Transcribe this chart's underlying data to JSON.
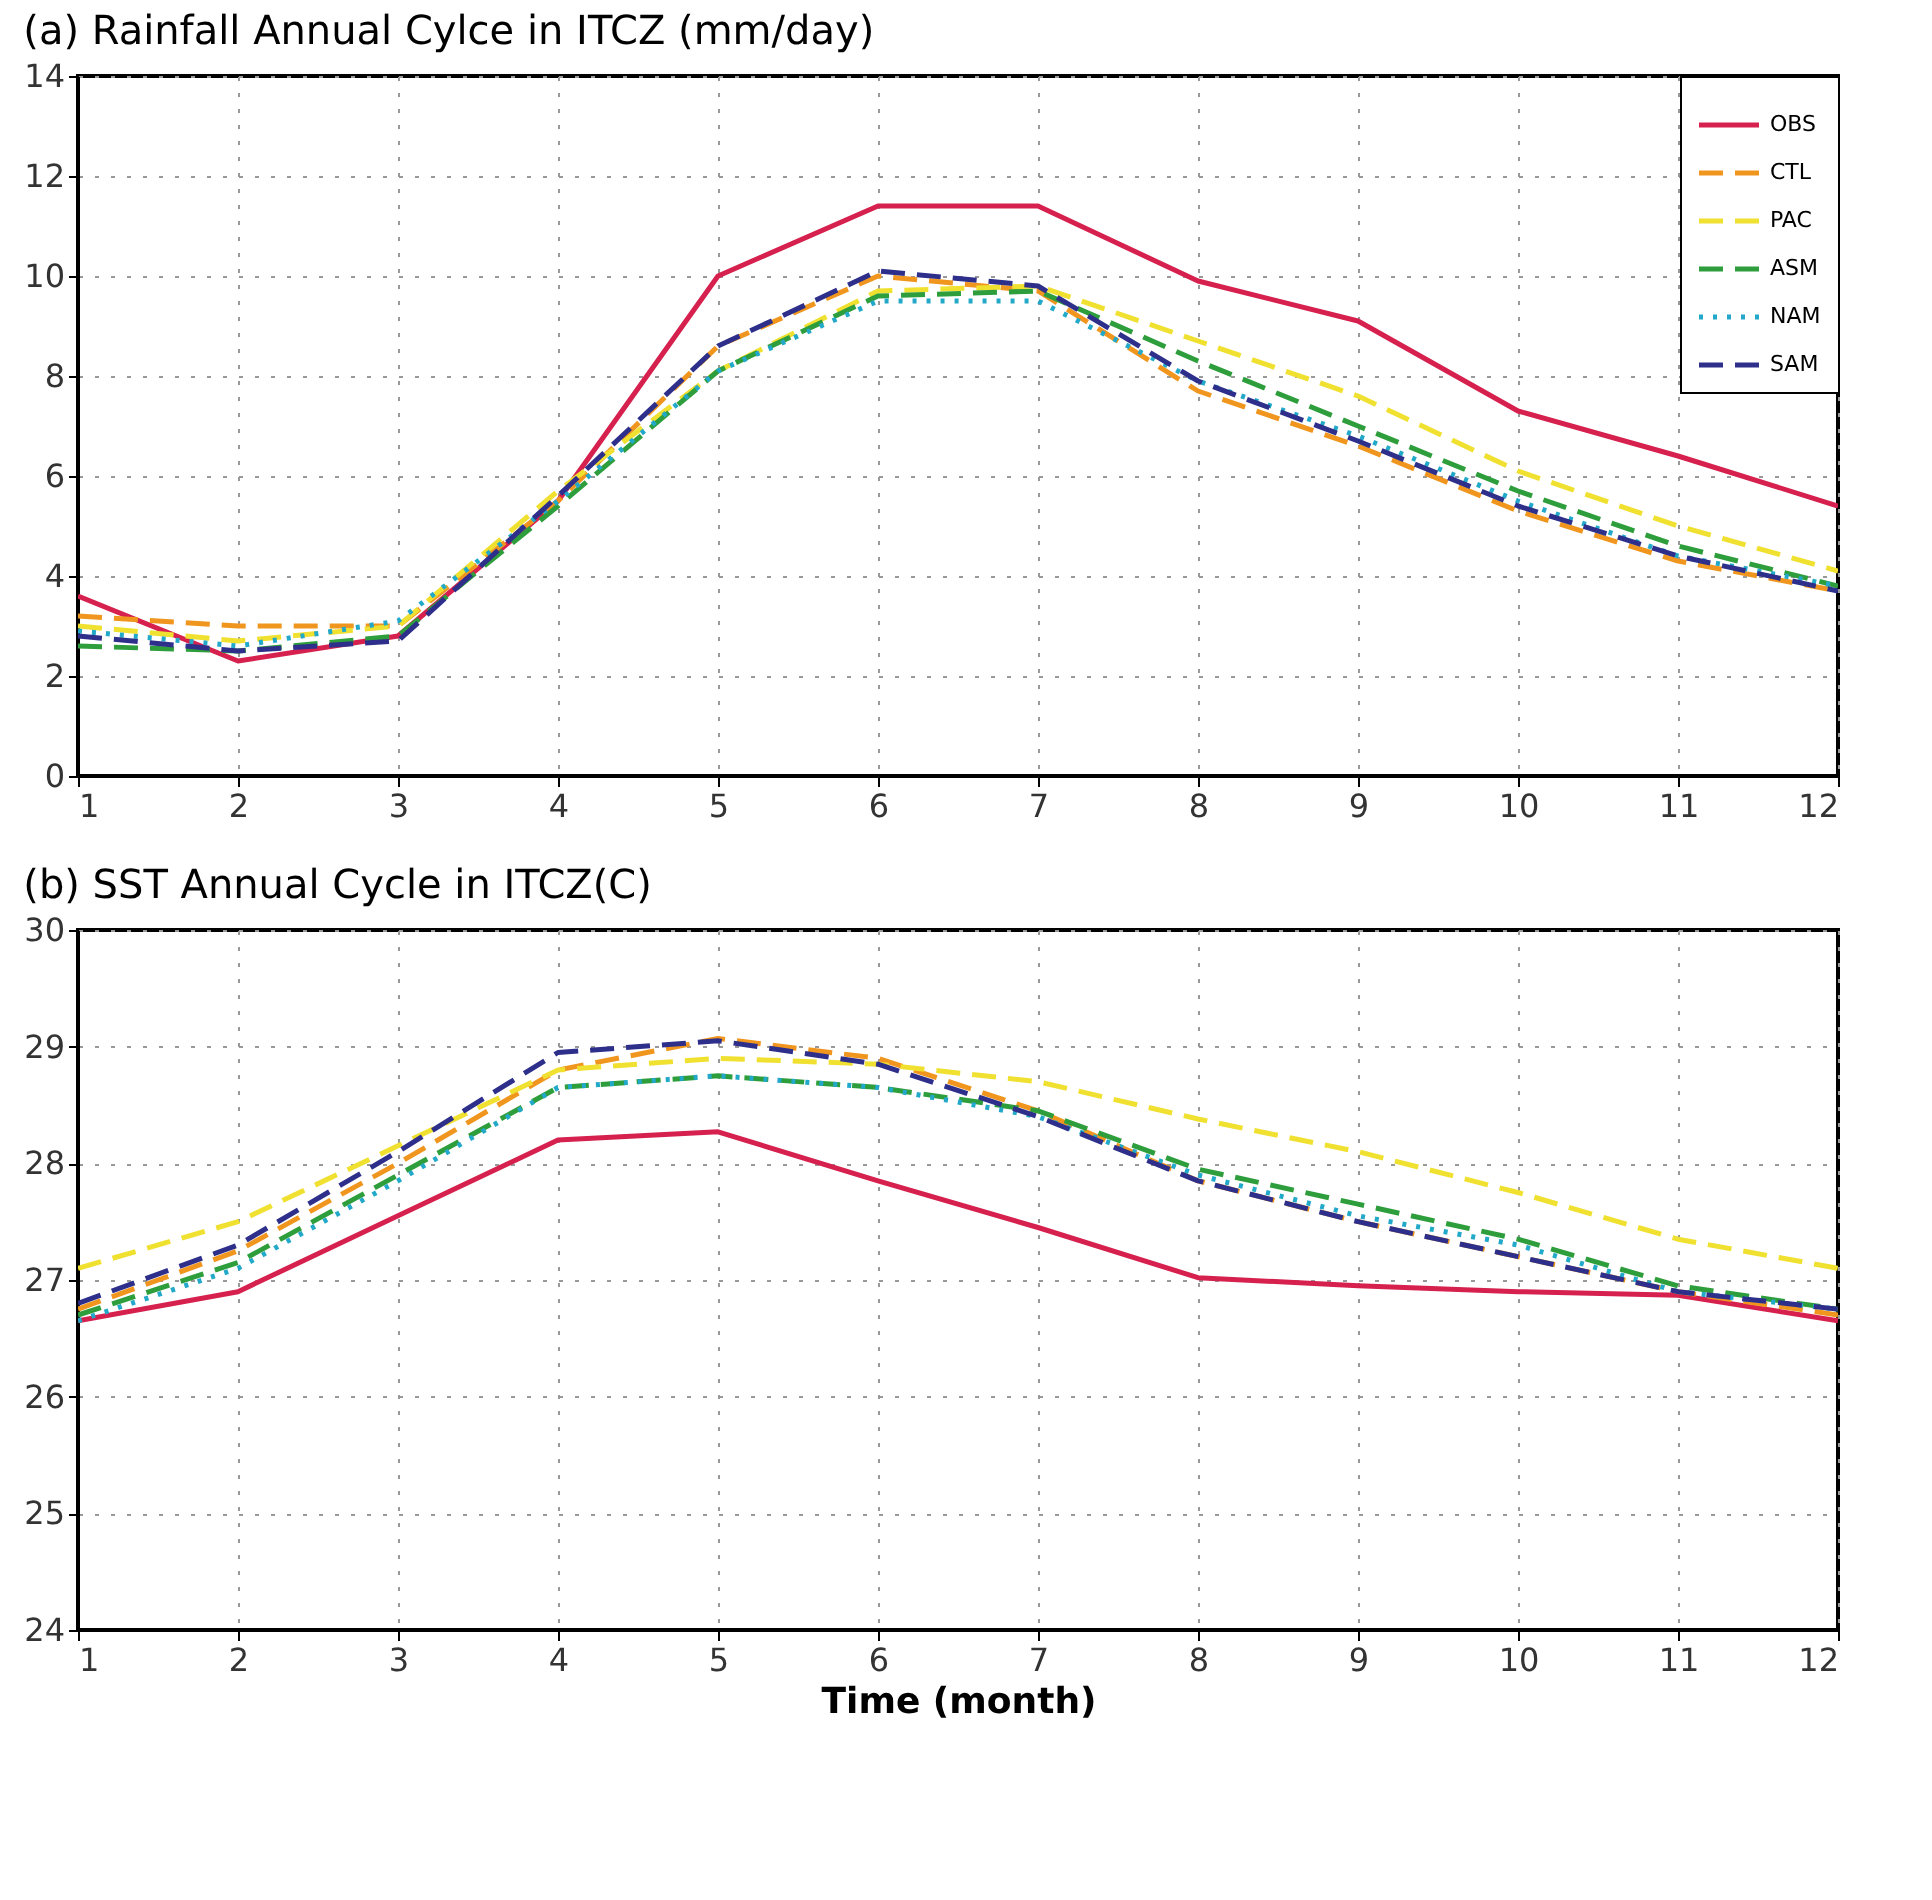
{
  "chart_data": [
    {
      "type": "line",
      "title": "(a) Rainfall Annual Cylce in ITCZ (mm/day)",
      "x": [
        1,
        2,
        3,
        4,
        5,
        6,
        7,
        8,
        9,
        10,
        11,
        12
      ],
      "xlim": [
        1,
        12
      ],
      "xticks": [
        1,
        2,
        3,
        4,
        5,
        6,
        7,
        8,
        9,
        10,
        11,
        12
      ],
      "ylim": [
        0,
        14
      ],
      "yticks": [
        0,
        2,
        4,
        6,
        8,
        10,
        12,
        14
      ],
      "grid": true,
      "legend": "top right",
      "marker": "none",
      "series": [
        {
          "name": "OBS",
          "color": "#d6204e",
          "line_style": "solid",
          "values": [
            3.6,
            2.3,
            2.8,
            5.5,
            10.0,
            11.4,
            11.4,
            9.9,
            9.1,
            7.3,
            6.4,
            5.4
          ]
        },
        {
          "name": "CTL",
          "color": "#f0961e",
          "line_style": "dashed",
          "values": [
            3.2,
            3.0,
            3.0,
            5.5,
            8.6,
            10.0,
            9.7,
            7.7,
            6.6,
            5.3,
            4.3,
            3.7
          ]
        },
        {
          "name": "PAC",
          "color": "#f0e030",
          "line_style": "dashed",
          "values": [
            3.0,
            2.7,
            3.0,
            5.7,
            8.1,
            9.7,
            9.8,
            8.7,
            7.6,
            6.1,
            5.0,
            4.1
          ]
        },
        {
          "name": "ASM",
          "color": "#2e9e3c",
          "line_style": "dashed",
          "values": [
            2.6,
            2.5,
            2.8,
            5.4,
            8.1,
            9.6,
            9.7,
            8.3,
            7.0,
            5.7,
            4.6,
            3.8
          ]
        },
        {
          "name": "NAM",
          "color": "#22a8c8",
          "line_style": "dotted",
          "values": [
            2.9,
            2.6,
            3.1,
            5.5,
            8.1,
            9.5,
            9.5,
            7.9,
            6.8,
            5.5,
            4.4,
            3.8
          ]
        },
        {
          "name": "SAM",
          "color": "#2e2f8a",
          "line_style": "dashed",
          "values": [
            2.8,
            2.5,
            2.7,
            5.6,
            8.6,
            10.1,
            9.8,
            7.9,
            6.7,
            5.4,
            4.4,
            3.7
          ]
        }
      ]
    },
    {
      "type": "line",
      "title": "(b) SST Annual Cycle in ITCZ(C)",
      "xlabel": "Time (month)",
      "x": [
        1,
        2,
        3,
        4,
        5,
        6,
        7,
        8,
        9,
        10,
        11,
        12
      ],
      "xlim": [
        1,
        12
      ],
      "xticks": [
        1,
        2,
        3,
        4,
        5,
        6,
        7,
        8,
        9,
        10,
        11,
        12
      ],
      "ylim": [
        24,
        30
      ],
      "yticks": [
        24,
        25,
        26,
        27,
        28,
        29,
        30
      ],
      "grid": true,
      "legend": false,
      "marker": "none",
      "series": [
        {
          "color": "#d6204e",
          "line_style": "solid",
          "values": [
            26.65,
            26.9,
            27.55,
            28.2,
            28.27,
            27.85,
            27.45,
            27.02,
            26.95,
            26.9,
            26.87,
            26.65
          ]
        },
        {
          "color": "#f0961e",
          "line_style": "dashed",
          "values": [
            26.75,
            27.25,
            28.0,
            28.8,
            29.07,
            28.9,
            28.45,
            27.85,
            27.5,
            27.2,
            26.9,
            26.7
          ]
        },
        {
          "color": "#f0e030",
          "line_style": "dashed",
          "values": [
            27.1,
            27.5,
            28.15,
            28.8,
            28.9,
            28.85,
            28.7,
            28.38,
            28.1,
            27.75,
            27.35,
            27.1
          ]
        },
        {
          "color": "#2e9e3c",
          "line_style": "dashed",
          "values": [
            26.7,
            27.15,
            27.9,
            28.65,
            28.75,
            28.65,
            28.45,
            27.95,
            27.65,
            27.35,
            26.95,
            26.75
          ]
        },
        {
          "color": "#22a8c8",
          "line_style": "dotted",
          "values": [
            26.65,
            27.1,
            27.85,
            28.65,
            28.75,
            28.65,
            28.4,
            27.9,
            27.55,
            27.3,
            26.9,
            26.75
          ]
        },
        {
          "color": "#2e2f8a",
          "line_style": "dashed",
          "values": [
            26.8,
            27.3,
            28.1,
            28.95,
            29.05,
            28.85,
            28.4,
            27.85,
            27.5,
            27.2,
            26.9,
            26.75
          ]
        }
      ]
    }
  ]
}
